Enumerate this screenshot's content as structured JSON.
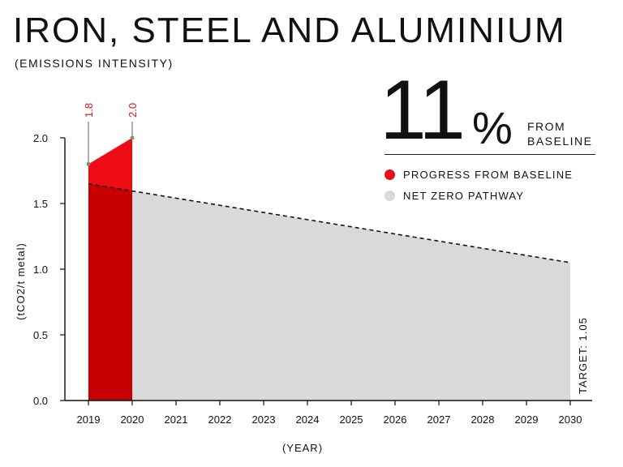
{
  "header": {
    "title": "IRON, STEEL AND ALUMINIUM",
    "subtitle": "(EMISSIONS INTENSITY)"
  },
  "kpi": {
    "value": "11",
    "symbol": "%",
    "caption_line1": "FROM",
    "caption_line2": "BASELINE"
  },
  "legend": [
    {
      "label": "PROGRESS FROM BASELINE",
      "color": "#ee0d14"
    },
    {
      "label": "NET ZERO PATHWAY",
      "color": "#d9d9d9"
    }
  ],
  "chart_data": {
    "type": "area",
    "xlabel": "(YEAR)",
    "ylabel": "(tCO2/t metal)",
    "x": [
      "2019",
      "2020",
      "2021",
      "2022",
      "2023",
      "2024",
      "2025",
      "2026",
      "2027",
      "2028",
      "2029",
      "2030"
    ],
    "ylim": [
      0,
      2.0
    ],
    "yticks": [
      "0.0",
      "0.5",
      "1.0",
      "1.5",
      "2.0"
    ],
    "series": [
      {
        "name": "PROGRESS FROM BASELINE",
        "color": "#ee0d14",
        "x": [
          "2019",
          "2020"
        ],
        "values": [
          1.8,
          2.0
        ],
        "labels": [
          "1.8",
          "2.0"
        ]
      },
      {
        "name": "NET ZERO PATHWAY",
        "color": "#d9d9d9",
        "x": [
          "2019",
          "2030"
        ],
        "values": [
          1.65,
          1.05
        ],
        "style": "dashed"
      }
    ],
    "overlap_color": "#c60000",
    "annotation": "TARGET: 1.05"
  }
}
